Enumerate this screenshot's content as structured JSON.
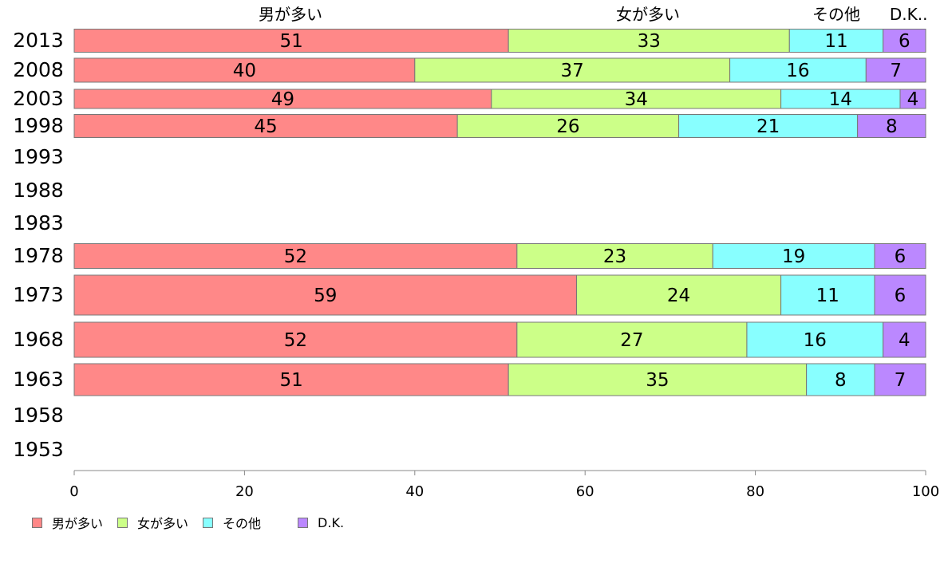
{
  "chart_data": {
    "type": "bar",
    "orientation": "horizontal",
    "stacked": true,
    "categories": [
      "2013",
      "2008",
      "2003",
      "1998",
      "1993",
      "1988",
      "1983",
      "1978",
      "1973",
      "1968",
      "1963",
      "1958",
      "1953"
    ],
    "series": [
      {
        "name": "男が多い",
        "color": "#ff8888",
        "values": [
          51,
          40,
          49,
          45,
          null,
          null,
          null,
          52,
          59,
          52,
          51,
          null,
          null
        ]
      },
      {
        "name": "女が多い",
        "color": "#ccff88",
        "values": [
          33,
          37,
          34,
          26,
          null,
          null,
          null,
          23,
          24,
          27,
          35,
          null,
          null
        ]
      },
      {
        "name": "その他",
        "color": "#88ffff",
        "values": [
          11,
          16,
          14,
          21,
          null,
          null,
          null,
          19,
          11,
          16,
          8,
          null,
          null
        ]
      },
      {
        "name": "D.K..",
        "color": "#bb88ff",
        "values": [
          6,
          7,
          4,
          8,
          null,
          null,
          null,
          6,
          6,
          4,
          7,
          null,
          null
        ]
      }
    ],
    "xlim": [
      0,
      100
    ],
    "xticks": [
      "0",
      "20",
      "40",
      "60",
      "80",
      "100"
    ],
    "legend": {
      "position": "bottom-left",
      "items": [
        {
          "label": "男が多い",
          "color": "#ff8888"
        },
        {
          "label": "女が多い",
          "color": "#ccff88"
        },
        {
          "label": "その他",
          "color": "#88ffff"
        },
        {
          "label": "D.K.",
          "color": "#bb88ff"
        }
      ]
    },
    "column_headers": [
      "男が多い",
      "女が多い",
      "その他",
      "D.K.."
    ]
  }
}
